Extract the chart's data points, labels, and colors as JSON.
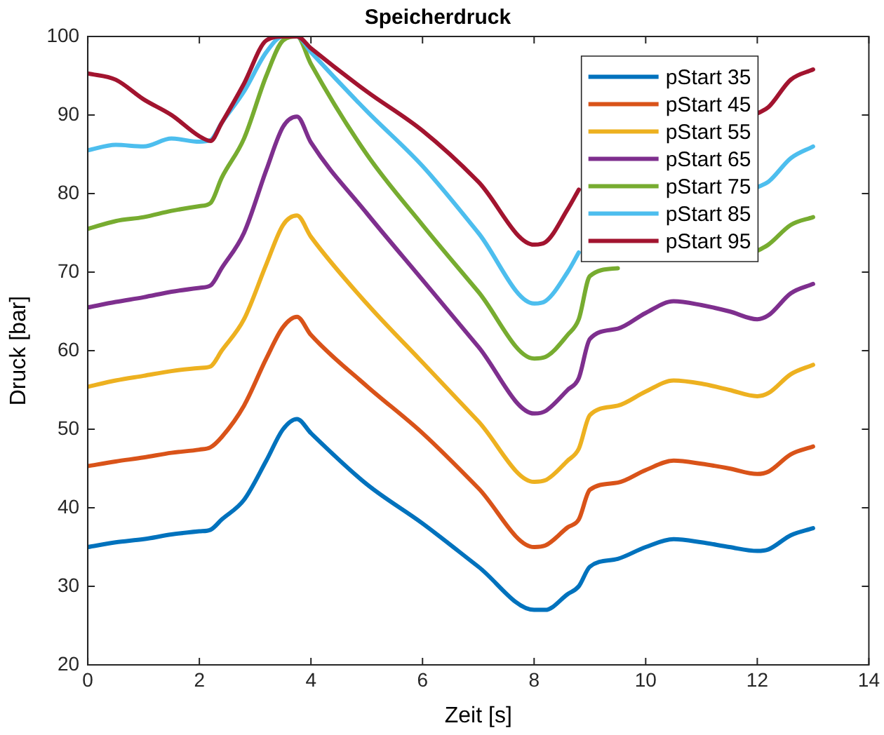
{
  "chart_data": {
    "type": "line",
    "title": "Speicherdruck",
    "xlabel": "Zeit [s]",
    "ylabel": "Druck [bar]",
    "x": [
      0,
      0.5,
      1,
      1.5,
      2,
      2.2,
      2.4,
      2.8,
      3.2,
      3.5,
      3.75,
      4,
      5,
      6,
      7,
      8,
      8.2,
      8.6,
      8.8,
      9,
      9.5,
      10,
      10.5,
      11,
      11.5,
      12,
      12.2,
      12.6,
      13
    ],
    "xlim": [
      0,
      14
    ],
    "xticks": [
      0,
      2,
      4,
      6,
      8,
      10,
      12,
      14
    ],
    "ylim": [
      20,
      100
    ],
    "yticks": [
      20,
      30,
      40,
      50,
      60,
      70,
      80,
      90,
      100
    ],
    "grid": false,
    "legend": "top right",
    "marker": "none",
    "line_style": "solid",
    "series": [
      {
        "name": "pStart 35",
        "color": "#0072bd",
        "values": [
          35.0,
          35.6,
          36.0,
          36.6,
          37.0,
          37.2,
          38.5,
          41,
          46,
          50,
          51.3,
          49.5,
          43,
          38,
          32.5,
          27,
          27,
          29,
          30,
          32.5,
          33.5,
          35,
          36,
          35.6,
          35,
          34.5,
          34.7,
          36.5,
          37.4
        ]
      },
      {
        "name": "pStart 45",
        "color": "#d95319",
        "values": [
          45.3,
          45.9,
          46.4,
          47.0,
          47.4,
          47.7,
          49,
          53,
          59,
          63,
          64.3,
          62,
          55.5,
          49.5,
          42.5,
          35,
          35.2,
          37.5,
          38.5,
          42.3,
          43.2,
          44.8,
          46,
          45.6,
          45,
          44.3,
          44.6,
          46.8,
          47.8
        ]
      },
      {
        "name": "pStart 55",
        "color": "#edb120",
        "values": [
          55.4,
          56.2,
          56.8,
          57.4,
          57.8,
          58,
          60,
          64,
          71,
          76,
          77.2,
          74.5,
          66,
          58.5,
          51,
          43.3,
          43.5,
          46,
          47.5,
          51.8,
          53,
          54.8,
          56.2,
          55.8,
          55,
          54.2,
          54.6,
          57,
          58.2
        ]
      },
      {
        "name": "pStart 65",
        "color": "#7e2f8e",
        "values": [
          65.5,
          66.2,
          66.8,
          67.5,
          68,
          68.3,
          70.5,
          75,
          83,
          88.5,
          89.8,
          86.5,
          77.5,
          69,
          60.5,
          52,
          52.3,
          55,
          56.5,
          61.5,
          62.8,
          64.8,
          66.3,
          65.8,
          65,
          64,
          64.5,
          67.3,
          68.5
        ]
      },
      {
        "name": "pStart 75",
        "color": "#77ac30",
        "values": [
          75.5,
          76.5,
          77,
          77.8,
          78.4,
          78.8,
          82,
          87,
          95,
          99.5,
          100,
          96.5,
          85,
          76,
          67.5,
          59,
          59.2,
          62,
          64,
          69.5,
          70.5,
          null,
          null,
          null,
          null,
          72.7,
          73.5,
          76,
          77
        ]
      },
      {
        "name": "pStart 85",
        "color": "#4dbeee",
        "values": [
          85.5,
          86.2,
          86,
          87,
          86.6,
          86.8,
          89,
          93,
          98,
          100,
          100,
          98,
          90.5,
          83.5,
          75,
          66,
          66.3,
          70,
          72.5,
          null,
          null,
          null,
          null,
          null,
          null,
          80.8,
          81.5,
          84.5,
          86
        ]
      },
      {
        "name": "pStart 95",
        "color": "#a2142f",
        "values": [
          95.3,
          94.5,
          92,
          90,
          87.3,
          86.7,
          89,
          94,
          99.5,
          100,
          100,
          98.5,
          93,
          88,
          81.5,
          73.5,
          73.8,
          78,
          80.5,
          null,
          null,
          null,
          null,
          null,
          null,
          90.2,
          91,
          94.5,
          95.8
        ]
      }
    ]
  }
}
